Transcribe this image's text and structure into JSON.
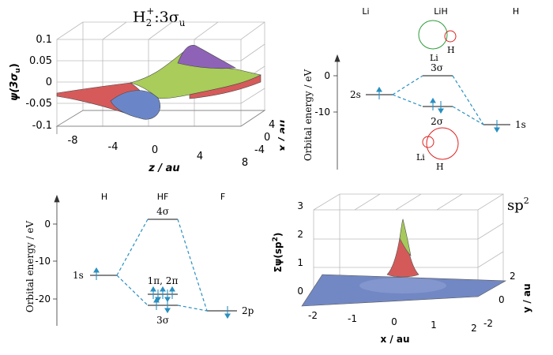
{
  "top_left": {
    "title_main": "H",
    "title_sub": "2",
    "title_sup": "+",
    "title_rest": ":3σ",
    "title_rest_sub": "u",
    "ylabel": "ψ(3σ",
    "ylabel_sub": "u",
    "ylabel_end": ")",
    "zlabel": "z / au",
    "xlabel": "x / au",
    "yticks": [
      "0.1",
      "0.05",
      "0",
      "-0.05",
      "-0.1"
    ],
    "zticks": [
      "-8",
      "-4",
      "0",
      "4",
      "8"
    ],
    "xticks": [
      "4",
      "0",
      "-4"
    ],
    "colors": {
      "red": "#d65a5a",
      "green": "#a9cc5a",
      "purple": "#8e63b7",
      "blue": "#6b86c8"
    }
  },
  "top_right": {
    "col_left": "Li",
    "col_mid": "LiH",
    "col_right": "H",
    "ylabel": "Orbital energy / eV",
    "yticks": [
      "0",
      "-10"
    ],
    "level_left": "2s",
    "level_right": "1s",
    "level_upper": "3σ",
    "level_lower": "2σ",
    "top_big": "Li",
    "top_small": "H",
    "bot_small": "Li",
    "bot_big": "H"
  },
  "bottom_left": {
    "col_left": "H",
    "col_mid": "HF",
    "col_right": "F",
    "ylabel": "Orbital energy / eV",
    "yticks": [
      "0",
      "-10",
      "-20"
    ],
    "level_left": "1s",
    "level_top": "4σ",
    "level_pi": "1π, 2π",
    "level_sigma": "3σ",
    "level_right": "2p"
  },
  "bottom_right": {
    "title_main": "sp",
    "title_sup": "2",
    "ylabel": "Σψ(sp",
    "ylabel_sup": "2",
    "ylabel_end": ")",
    "xlabel": "x / au",
    "side_label": "y / au",
    "zticks": [
      "3",
      "2",
      "1",
      "0"
    ],
    "xticks": [
      "-2",
      "-1",
      "0",
      "1",
      "2"
    ],
    "yticks": [
      "2",
      "0",
      "-2"
    ],
    "colors": {
      "blue": "#7288c4",
      "red": "#d45a5a",
      "green": "#a6c95a"
    }
  }
}
